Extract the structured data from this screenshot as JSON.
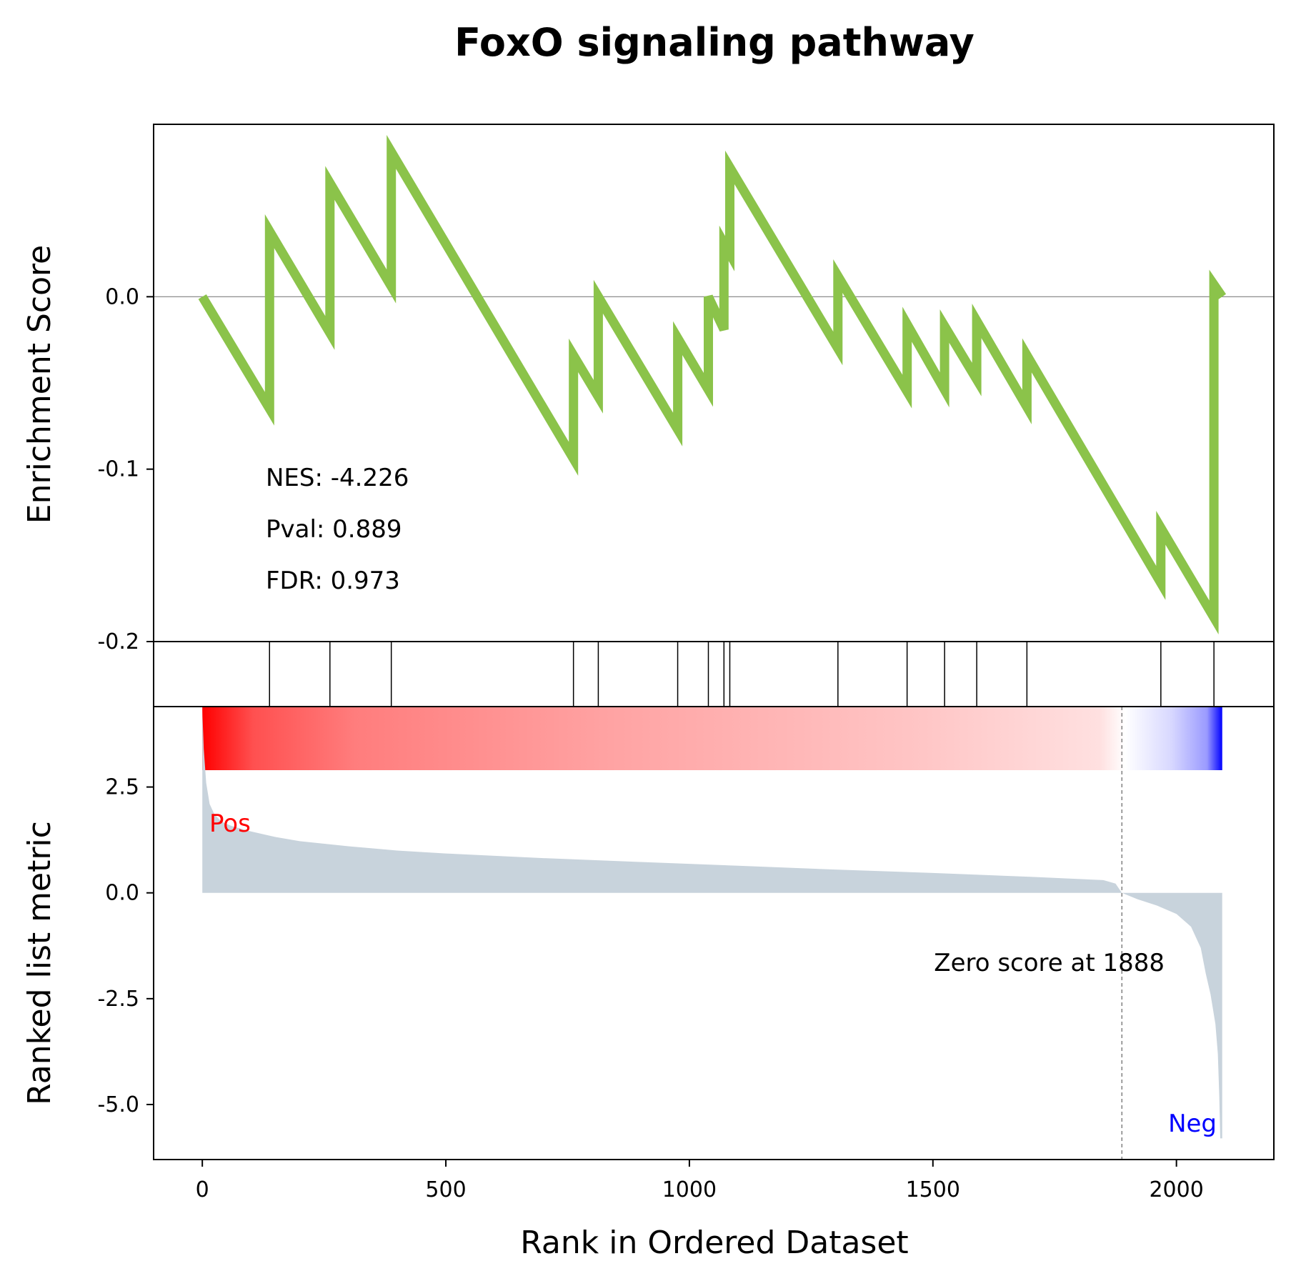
{
  "chart_data": {
    "type": "line",
    "title": "FoxO signaling pathway",
    "xlabel": "Rank in Ordered Dataset",
    "xlim": [
      -100,
      2200
    ],
    "x_ticks": [
      "0",
      "500",
      "1000",
      "1500",
      "2000"
    ],
    "x_tick_values": [
      0,
      500,
      1000,
      1500,
      2000
    ],
    "enrichment": {
      "ylabel": "Enrichment Score",
      "ylim": [
        -0.2,
        0.1
      ],
      "y_ticks": [
        "0.0",
        "-0.1",
        "-0.2"
      ],
      "y_tick_values": [
        0.0,
        -0.1,
        -0.2
      ],
      "color": "#8bc34a",
      "series": {
        "x": [
          0,
          138,
          138,
          262,
          262,
          388,
          388,
          762,
          762,
          813,
          813,
          976,
          976,
          1039,
          1039,
          1071,
          1071,
          1083,
          1083,
          1305,
          1305,
          1447,
          1447,
          1524,
          1524,
          1590,
          1590,
          1693,
          1693,
          1968,
          1968,
          2077,
          2077,
          2094
        ],
        "y": [
          0.0,
          -0.065,
          0.038,
          -0.021,
          0.066,
          0.006,
          0.084,
          -0.094,
          -0.034,
          -0.058,
          0.0,
          -0.077,
          -0.024,
          -0.054,
          0.0,
          -0.019,
          0.031,
          0.025,
          0.075,
          -0.03,
          0.012,
          -0.055,
          -0.016,
          -0.054,
          -0.017,
          -0.048,
          -0.014,
          -0.064,
          -0.034,
          -0.166,
          -0.134,
          -0.186,
          0.007,
          0.0
        ]
      },
      "stats": {
        "nes": "NES: -4.226",
        "pval": "Pval: 0.889",
        "fdr": "FDR: 0.973"
      }
    },
    "hits": [
      138,
      262,
      388,
      762,
      813,
      976,
      1039,
      1071,
      1083,
      1305,
      1447,
      1524,
      1590,
      1693,
      1968,
      2077
    ],
    "ranked_metric": {
      "ylabel": "Ranked list metric",
      "ylim": [
        -6.3,
        4.4
      ],
      "y_ticks": [
        "2.5",
        "0.0",
        "-2.5",
        "-5.0"
      ],
      "y_tick_values": [
        2.5,
        0.0,
        -2.5,
        -5.0
      ],
      "fill_color": "#c8d3dc",
      "curve": {
        "x": [
          0,
          3,
          8,
          15,
          25,
          40,
          60,
          100,
          150,
          200,
          300,
          400,
          500,
          700,
          900,
          1100,
          1300,
          1500,
          1700,
          1850,
          1875,
          1888,
          1920,
          1960,
          2000,
          2030,
          2050,
          2060,
          2070,
          2080,
          2085,
          2088,
          2090,
          2094
        ],
        "y": [
          4.3,
          3.4,
          2.6,
          2.1,
          1.85,
          1.68,
          1.58,
          1.45,
          1.32,
          1.22,
          1.1,
          1.0,
          0.93,
          0.82,
          0.73,
          0.64,
          0.55,
          0.47,
          0.38,
          0.3,
          0.22,
          0.0,
          -0.15,
          -0.3,
          -0.5,
          -0.8,
          -1.3,
          -1.9,
          -2.4,
          -3.1,
          -3.8,
          -4.8,
          -5.8,
          -5.8
        ]
      },
      "zero_cross": 1888,
      "zero_label": "Zero score at 1888",
      "pos_label": "Pos",
      "neg_label": "Neg",
      "pos_color": "#ff0000",
      "neg_color": "#0000ff"
    }
  }
}
